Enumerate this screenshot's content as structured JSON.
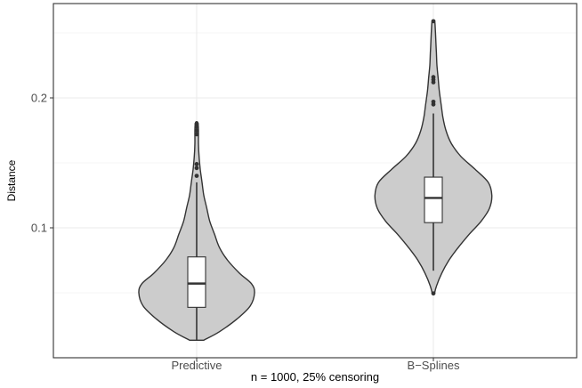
{
  "chart_data": {
    "type": "violin",
    "xlabel": "n = 1000, 25% censoring",
    "ylabel": "Distance",
    "categories": [
      "Predictive",
      "B−Splines"
    ],
    "y_ticks": [
      0.1,
      0.2
    ],
    "y_tick_labels": [
      "0.1",
      "0.2"
    ],
    "ylim": [
      0.0,
      0.27
    ],
    "grid": true,
    "colors": {
      "fill": "#cccccc",
      "outline": "#333333",
      "grid": "#ebebeb",
      "panel_border": "#333333"
    },
    "series": [
      {
        "category": "Predictive",
        "min": 0.0135,
        "q1": 0.0388,
        "median": 0.0571,
        "q3": 0.0776,
        "whisker_low": 0.0135,
        "whisker_high": 0.135,
        "outliers": [
          0.14,
          0.146,
          0.149,
          0.172,
          0.175,
          0.178,
          0.18
        ],
        "max": 0.181,
        "density_profile": [
          [
            0.0135,
            0.12
          ],
          [
            0.02,
            0.38
          ],
          [
            0.03,
            0.68
          ],
          [
            0.04,
            0.9
          ],
          [
            0.05,
            0.97
          ],
          [
            0.057,
            0.92
          ],
          [
            0.065,
            0.72
          ],
          [
            0.075,
            0.52
          ],
          [
            0.085,
            0.38
          ],
          [
            0.095,
            0.3
          ],
          [
            0.105,
            0.22
          ],
          [
            0.115,
            0.17
          ],
          [
            0.125,
            0.12
          ],
          [
            0.135,
            0.09
          ],
          [
            0.145,
            0.06
          ],
          [
            0.155,
            0.04
          ],
          [
            0.165,
            0.03
          ],
          [
            0.175,
            0.03
          ],
          [
            0.181,
            0.02
          ]
        ]
      },
      {
        "category": "B−Splines",
        "min": 0.0495,
        "q1": 0.104,
        "median": 0.123,
        "q3": 0.139,
        "whisker_low": 0.067,
        "whisker_high": 0.188,
        "outliers": [
          0.0495,
          0.195,
          0.197,
          0.212,
          0.214,
          0.216,
          0.259
        ],
        "max": 0.259,
        "density_profile": [
          [
            0.0495,
            0.02
          ],
          [
            0.055,
            0.05
          ],
          [
            0.065,
            0.14
          ],
          [
            0.075,
            0.26
          ],
          [
            0.085,
            0.42
          ],
          [
            0.095,
            0.6
          ],
          [
            0.105,
            0.8
          ],
          [
            0.115,
            0.94
          ],
          [
            0.125,
            0.98
          ],
          [
            0.135,
            0.92
          ],
          [
            0.145,
            0.7
          ],
          [
            0.155,
            0.46
          ],
          [
            0.165,
            0.3
          ],
          [
            0.175,
            0.21
          ],
          [
            0.185,
            0.16
          ],
          [
            0.195,
            0.13
          ],
          [
            0.205,
            0.1
          ],
          [
            0.215,
            0.08
          ],
          [
            0.225,
            0.06
          ],
          [
            0.235,
            0.05
          ],
          [
            0.245,
            0.04
          ],
          [
            0.255,
            0.03
          ],
          [
            0.259,
            0.02
          ]
        ]
      }
    ]
  }
}
